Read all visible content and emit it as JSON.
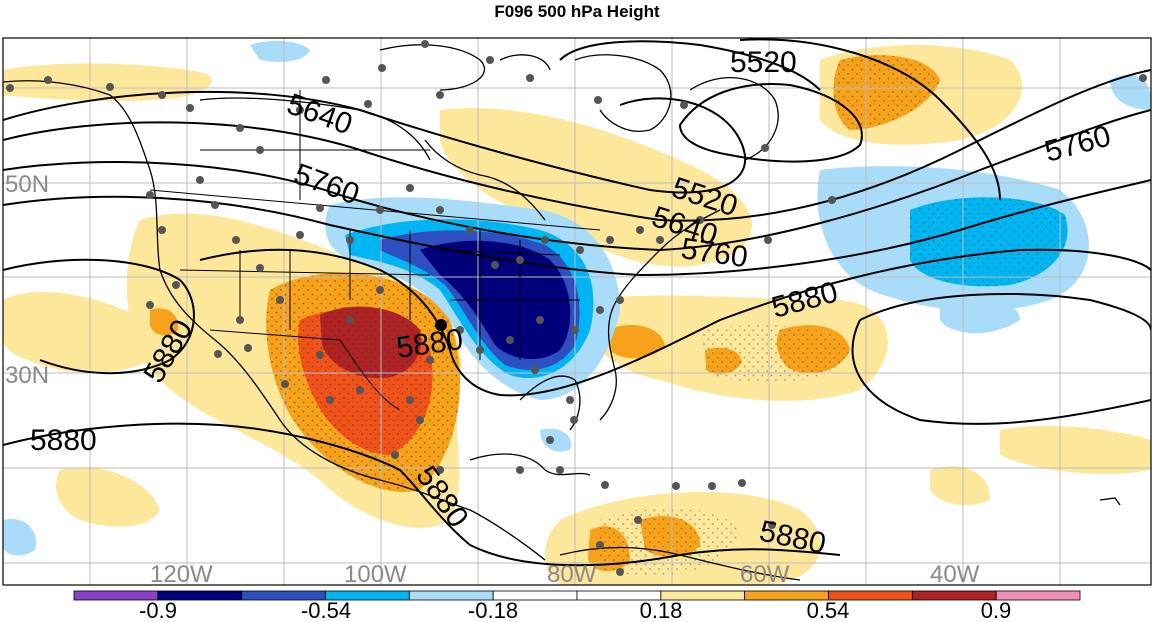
{
  "title": "F096 500 hPa Height",
  "contour_labels": [
    "5520",
    "5640",
    "5760",
    "5880"
  ],
  "lat_labels": [
    "50N",
    "30N"
  ],
  "lon_labels": [
    "120W",
    "100W",
    "80W",
    "60W",
    "40W"
  ],
  "colorbar": {
    "colors": [
      "#8c3fc8",
      "#00007a",
      "#2e4fc0",
      "#00b6f2",
      "#a9dcf9",
      "#ffffff",
      "#ffffff",
      "#fde79a",
      "#f7a21b",
      "#f0521a",
      "#ad2222",
      "#f08fb6"
    ],
    "tick_labels": [
      "-0.9",
      "-0.54",
      "-0.18",
      "0.18",
      "0.54",
      "0.9"
    ]
  }
}
